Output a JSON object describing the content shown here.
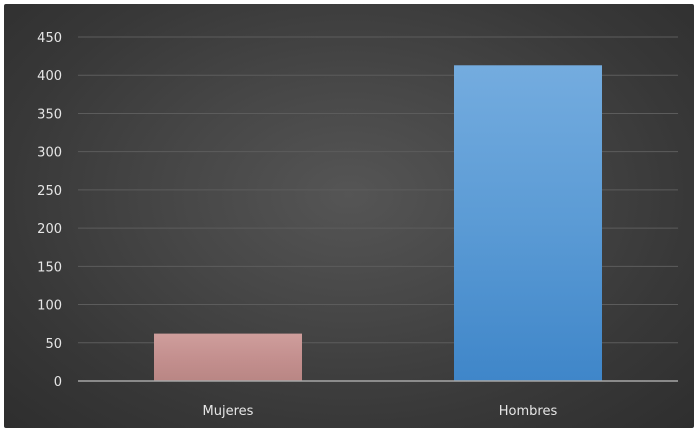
{
  "chart_data": {
    "type": "bar",
    "categories": [
      "Mujeres",
      "Hombres"
    ],
    "values": [
      62,
      413
    ],
    "title": "",
    "xlabel": "",
    "ylabel": "",
    "ylim": [
      0,
      450
    ],
    "yticks": [
      0,
      50,
      100,
      150,
      200,
      250,
      300,
      350,
      400,
      450
    ],
    "grid": true,
    "legend": "none",
    "colors": {
      "background": "#474747",
      "gridline": "#5c5c5c",
      "axis": "#a6a6a6",
      "text": "#e6e6e6",
      "bars": [
        "#c4908f",
        "#5b9bd5"
      ],
      "bars_light": [
        "#cf9e9c",
        "#74acdf"
      ],
      "bars_dark": [
        "#b98684",
        "#3f86c9"
      ]
    }
  }
}
